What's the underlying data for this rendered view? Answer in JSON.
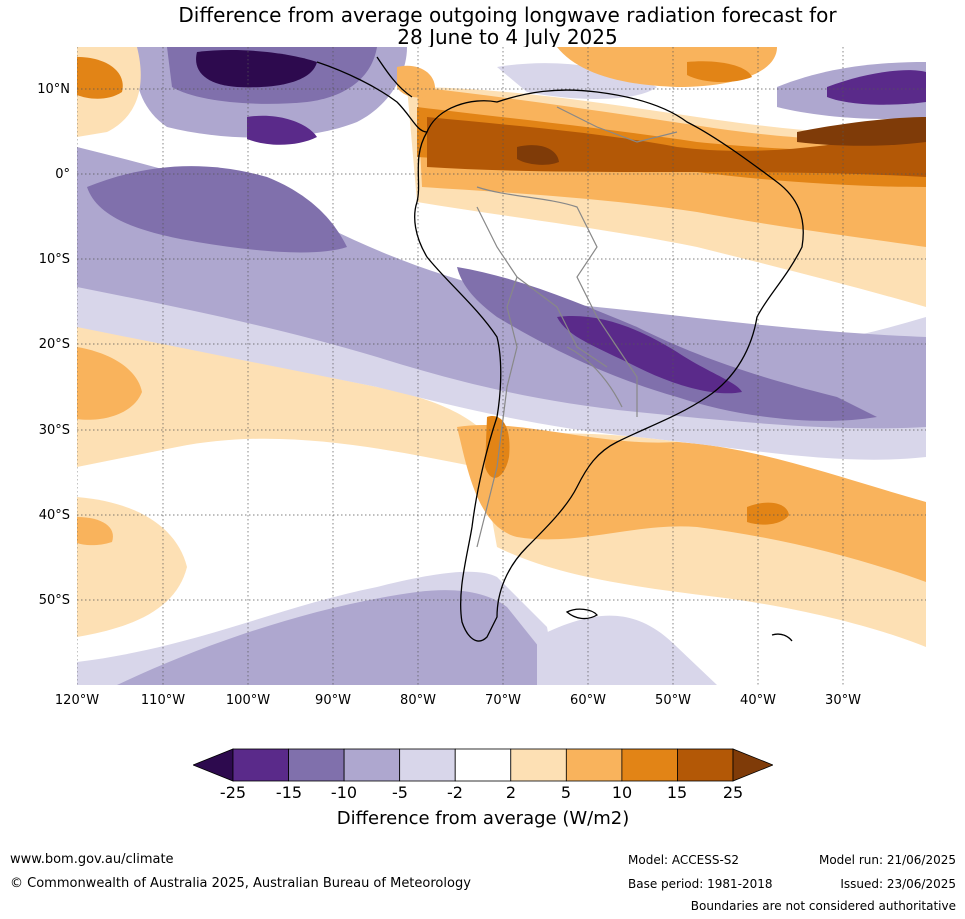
{
  "title_line1": "Difference from average outgoing longwave radiation forecast for",
  "title_line2": "28 June to 4 July 2025",
  "lat_labels": [
    "10°N",
    "0°",
    "10°S",
    "20°S",
    "30°S",
    "40°S",
    "50°S"
  ],
  "lon_labels": [
    "120°W",
    "110°W",
    "100°W",
    "90°W",
    "80°W",
    "70°W",
    "60°W",
    "50°W",
    "40°W",
    "30°W"
  ],
  "colorbar": {
    "ticks": [
      "-25",
      "-15",
      "-10",
      "-5",
      "-2",
      "2",
      "5",
      "10",
      "15",
      "25"
    ],
    "colors": [
      "#2d0a4e",
      "#5a2a8a",
      "#8070ac",
      "#aea7cf",
      "#d8d6ea",
      "#ffffff",
      "#fde0b4",
      "#f9b35c",
      "#e28416",
      "#b35806",
      "#7f3b08"
    ],
    "label": "Difference from average (W/m2)"
  },
  "footer": {
    "website": "www.bom.gov.au/climate",
    "copyright": "© Commonwealth of Australia 2025, Australian Bureau of Meteorology",
    "model": "Model: ACCESS-S2",
    "base_period": "Base period: 1981-2018",
    "model_run": "Model run: 21/06/2025",
    "issued": "Issued: 23/06/2025",
    "disclaimer": "Boundaries are not considered authoritative"
  }
}
